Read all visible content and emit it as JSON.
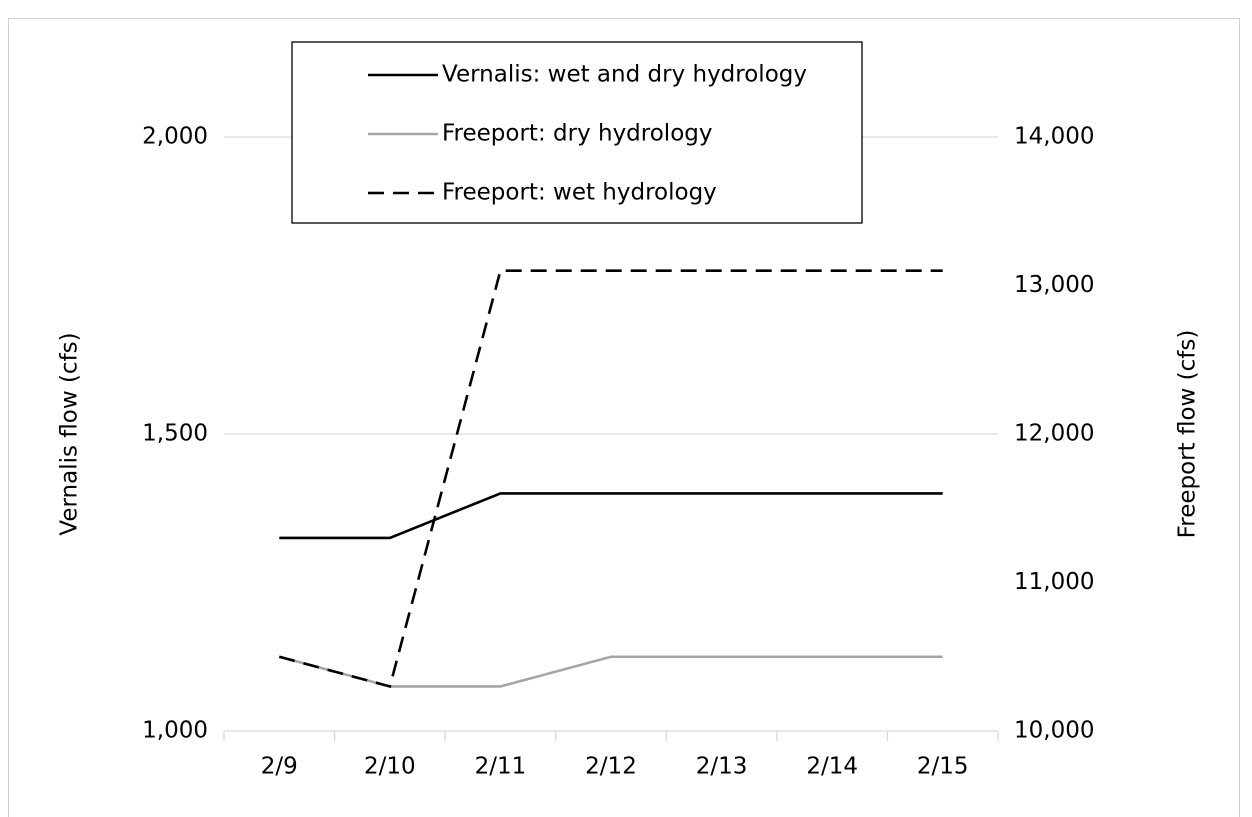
{
  "chart_data": {
    "type": "line",
    "categories": [
      "2/9",
      "2/10",
      "2/11",
      "2/12",
      "2/13",
      "2/14",
      "2/15"
    ],
    "series": [
      {
        "name": "Vernalis: wet and dry hydrology",
        "color": "#000000",
        "style": "solid",
        "axis": "y",
        "values": [
          1325,
          1325,
          1400,
          1400,
          1400,
          1400,
          1400
        ]
      },
      {
        "name": "Freeport: dry hydrology",
        "color": "#a6a6a6",
        "style": "solid",
        "axis": "y2",
        "values": [
          10500,
          10300,
          10300,
          10500,
          10500,
          10500,
          10500
        ]
      },
      {
        "name": "Freeport: wet hydrology",
        "color": "#000000",
        "style": "dashed",
        "axis": "y2",
        "values": [
          10500,
          10300,
          13100,
          13100,
          13100,
          13100,
          13100
        ]
      }
    ],
    "ylabel": "Vernalis flow (cfs)",
    "y2label": "Freeport flow (cfs)",
    "ylim": [
      1000,
      2000
    ],
    "yticks": [
      {
        "value": 1000,
        "label": "1,000"
      },
      {
        "value": 1500,
        "label": "1,500"
      },
      {
        "value": 2000,
        "label": "2,000"
      }
    ],
    "y2lim": [
      10000,
      14000
    ],
    "y2ticks": [
      {
        "value": 10000,
        "label": "10,000"
      },
      {
        "value": 11000,
        "label": "11,000"
      },
      {
        "value": 12000,
        "label": "12,000"
      },
      {
        "value": 13000,
        "label": "13,000"
      },
      {
        "value": 14000,
        "label": "14,000"
      }
    ],
    "grid": true,
    "legend": "top"
  }
}
